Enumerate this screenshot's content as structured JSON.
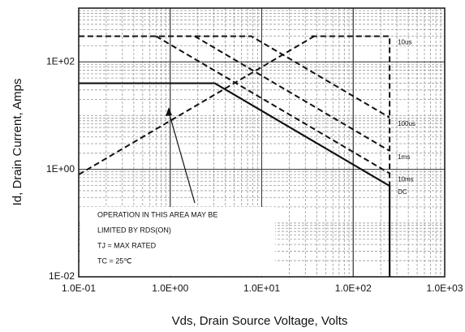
{
  "chart_data": {
    "type": "line",
    "xlabel": "Vds, Drain Source Voltage, Volts",
    "ylabel": "Id, Drain Current, Amps",
    "log_x": true,
    "log_y": true,
    "grid": true,
    "xlim": [
      0.1,
      1000
    ],
    "ylim": [
      0.01,
      1000
    ],
    "xticks": [
      {
        "value": 0.1,
        "label": "1.0E-01"
      },
      {
        "value": 1,
        "label": "1.0E+00"
      },
      {
        "value": 10,
        "label": "1.0E+01"
      },
      {
        "value": 100,
        "label": "1.0E+02"
      },
      {
        "value": 1000,
        "label": "1.0E+03"
      }
    ],
    "yticks": [
      {
        "value": 0.01,
        "label": "1E-02"
      },
      {
        "value": 1,
        "label": "1E+00"
      },
      {
        "value": 100,
        "label": "1E+02"
      }
    ],
    "series": [
      {
        "style": "dashed",
        "color": "#111111",
        "x": [
          0.1,
          37.5
        ],
        "values": [
          0.8,
          300
        ]
      },
      {
        "name": "10us",
        "style": "dashed",
        "color": "#111111",
        "x": [
          35,
          250,
          250
        ],
        "values": [
          300,
          300,
          0.49
        ]
      },
      {
        "name": "100us",
        "style": "dashed",
        "color": "#111111",
        "x": [
          0.1,
          7.7,
          250
        ],
        "values": [
          300,
          300,
          9.2
        ]
      },
      {
        "name": "1ms",
        "style": "dashed",
        "color": "#111111",
        "x": [
          1.85,
          250
        ],
        "values": [
          300,
          2.2
        ]
      },
      {
        "name": "10ms",
        "style": "dashed",
        "color": "#111111",
        "x": [
          0.7,
          250
        ],
        "values": [
          300,
          0.84
        ]
      },
      {
        "name": "DC",
        "style": "solid",
        "color": "#111111",
        "x": [
          0.1,
          3.07,
          250,
          250
        ],
        "values": [
          40,
          40,
          0.49,
          0.01
        ]
      }
    ],
    "annotations": [
      "OPERATION IN THIS AREA MAY BE",
      "LIMITED BY RDS(ON)",
      "TJ = MAX RATED",
      "TC = 25℃"
    ]
  }
}
